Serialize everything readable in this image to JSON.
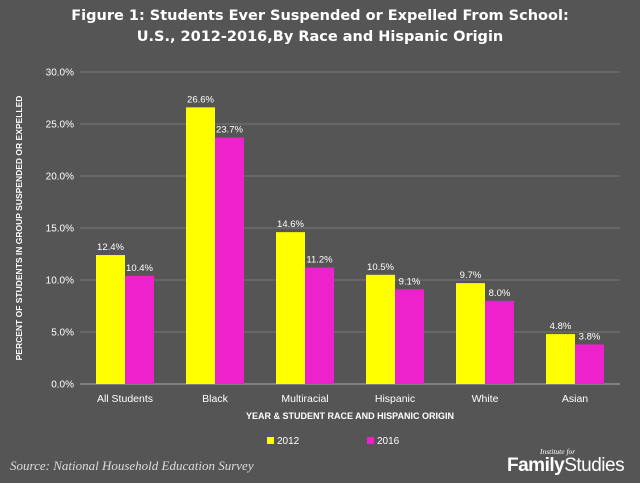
{
  "chart_data": {
    "type": "bar",
    "title_line1": "Figure 1: Students Ever Suspended or Expelled From School:",
    "title_line2": "U.S., 2012-2016,By Race and Hispanic Origin",
    "xlabel": "YEAR & STUDENT RACE AND HISPANIC ORIGIN",
    "ylabel": "PERCENT OF STUDENTS IN GROUP SUSPENDED OR EXPELLED",
    "categories": [
      "All Students",
      "Black",
      "Multiracial",
      "Hispanic",
      "White",
      "Asian"
    ],
    "series": [
      {
        "name": "2012",
        "color": "#ffff00",
        "values": [
          12.4,
          26.6,
          14.6,
          10.5,
          9.7,
          4.8
        ],
        "labels": [
          "12.4%",
          "26.6%",
          "14.6%",
          "10.5%",
          "9.7%",
          "4.8%"
        ]
      },
      {
        "name": "2016",
        "color": "#ee22cc",
        "values": [
          10.4,
          23.7,
          11.2,
          9.1,
          8.0,
          3.8
        ],
        "labels": [
          "10.4%",
          "23.7%",
          "11.2%",
          "9.1%",
          "8.0%",
          "3.8%"
        ]
      }
    ],
    "ylim": [
      0,
      30
    ],
    "yticks": [
      0,
      5,
      10,
      15,
      20,
      25,
      30
    ],
    "ytick_labels": [
      "0.0%",
      "5.0%",
      "10.0%",
      "15.0%",
      "20.0%",
      "25.0%",
      "30.0%"
    ],
    "grid": true,
    "legend_position": "bottom"
  },
  "source": "Source: National Household Education Survey",
  "logo": {
    "small": "Institute for",
    "main_bold": "Family",
    "main_regular": "Studies"
  }
}
